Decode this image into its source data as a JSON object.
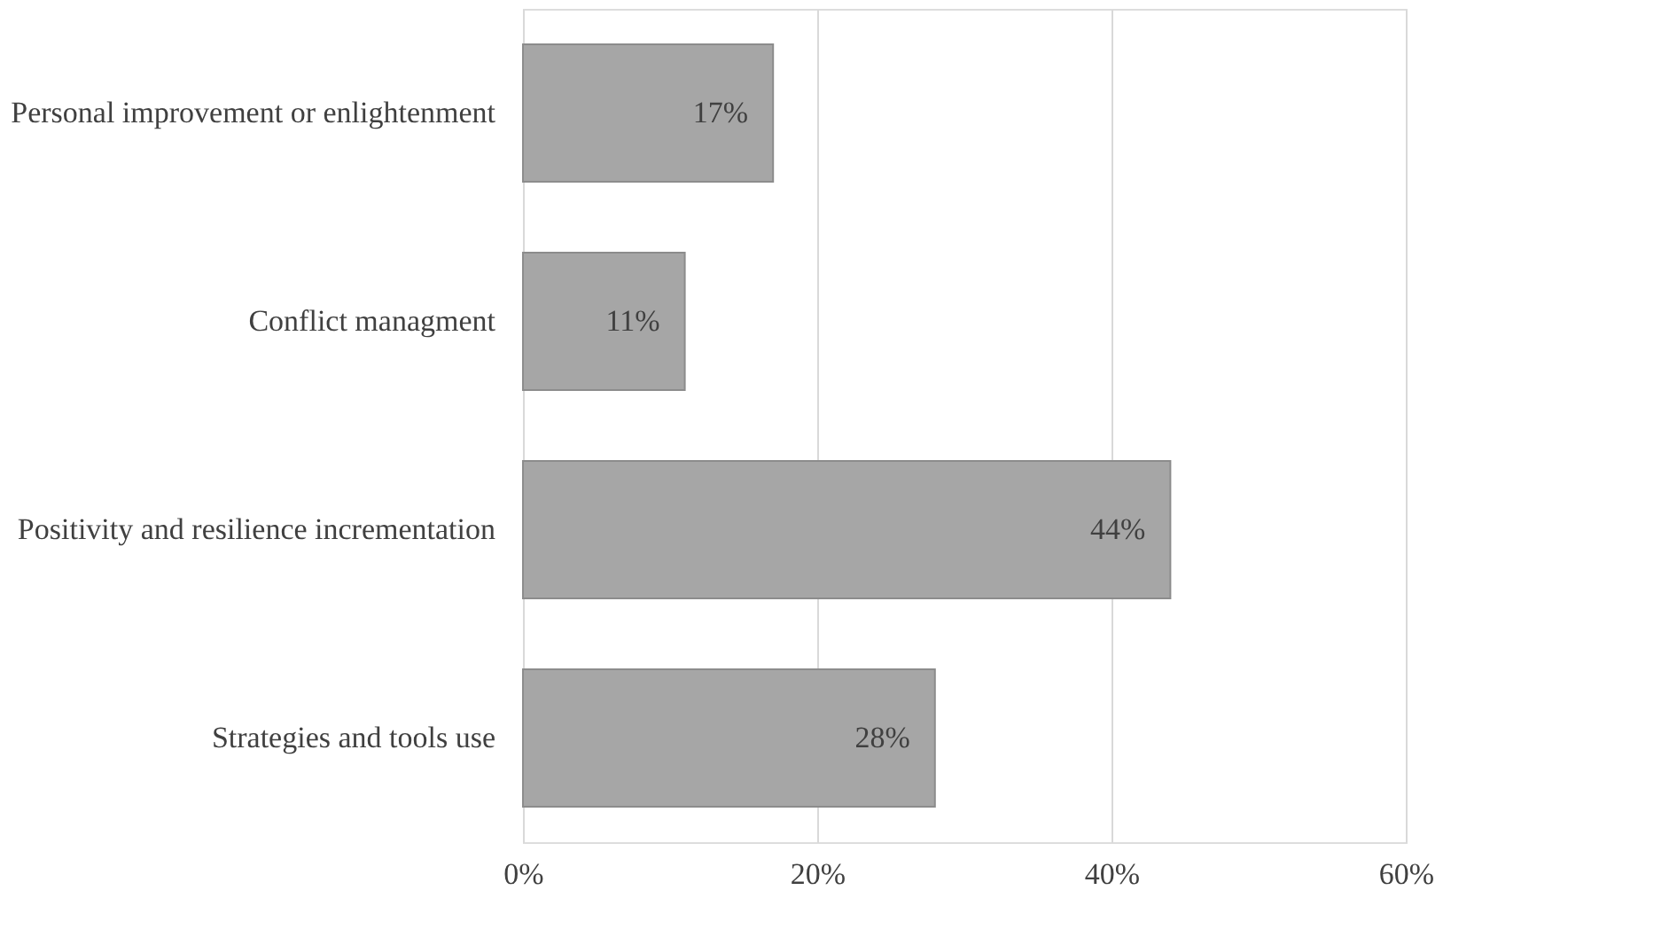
{
  "chart_data": {
    "type": "bar",
    "orientation": "horizontal",
    "categories": [
      "Personal improvement or enlightenment",
      "Conflict managment",
      "Positivity  and resilience incrementation",
      "Strategies and tools use"
    ],
    "values": [
      17,
      11,
      44,
      28
    ],
    "value_labels": [
      "17%",
      "11%",
      "44%",
      "28%"
    ],
    "color": "#a6a6a6",
    "xlim": [
      0,
      60
    ],
    "xticks": [
      {
        "value": 0,
        "label": "0%"
      },
      {
        "value": 20,
        "label": "20%"
      },
      {
        "value": 40,
        "label": "40%"
      },
      {
        "value": 60,
        "label": "60%"
      }
    ],
    "grid": "x"
  }
}
